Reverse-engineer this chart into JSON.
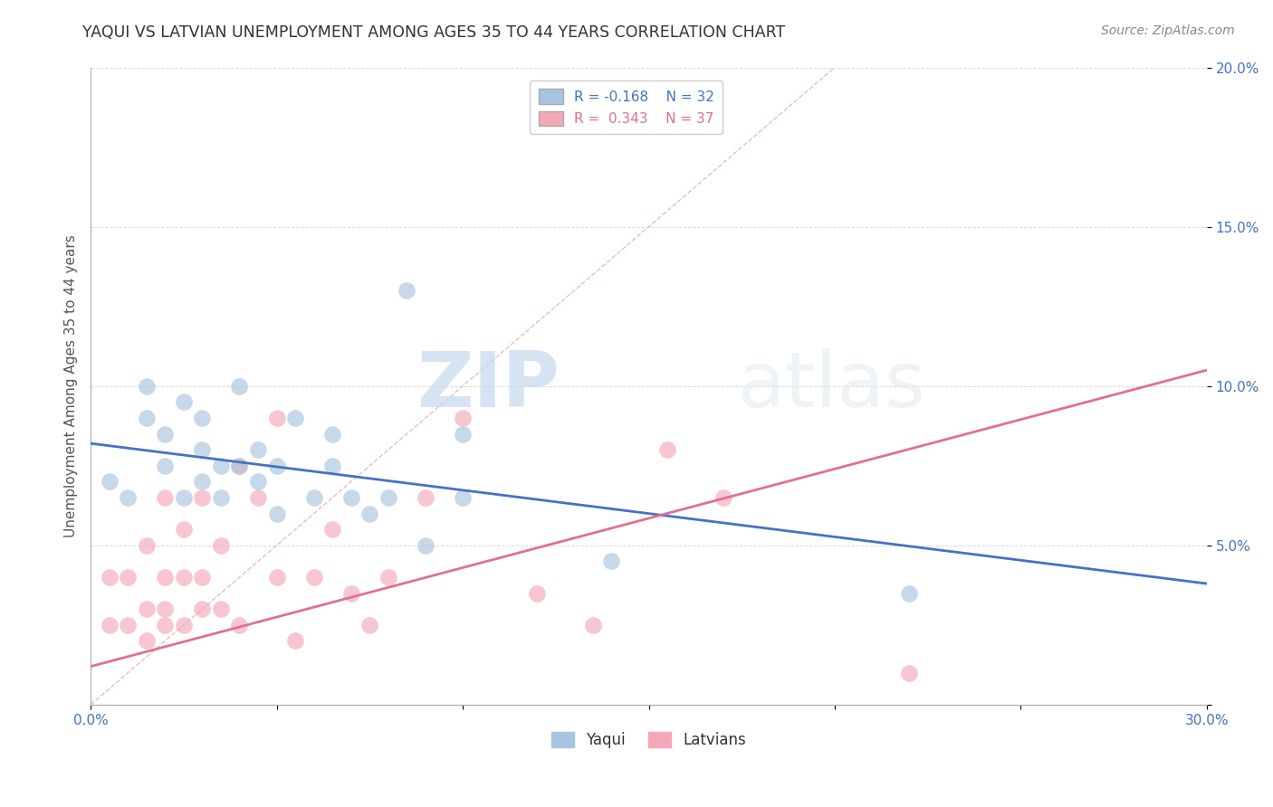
{
  "title": "YAQUI VS LATVIAN UNEMPLOYMENT AMONG AGES 35 TO 44 YEARS CORRELATION CHART",
  "source": "Source: ZipAtlas.com",
  "ylabel": "Unemployment Among Ages 35 to 44 years",
  "xlim": [
    0.0,
    0.3
  ],
  "ylim": [
    0.0,
    0.2
  ],
  "xticks": [
    0.0,
    0.05,
    0.1,
    0.15,
    0.2,
    0.25,
    0.3
  ],
  "yticks": [
    0.0,
    0.05,
    0.1,
    0.15,
    0.2
  ],
  "legend_r_yaqui": "-0.168",
  "legend_n_yaqui": "32",
  "legend_r_latvian": "0.343",
  "legend_n_latvian": "37",
  "yaqui_color": "#a8c4e0",
  "latvian_color": "#f4a8b8",
  "yaqui_line_color": "#4472c4",
  "latvian_line_color": "#e07090",
  "diagonal_color": "#d8b0b8",
  "watermark_zip": "ZIP",
  "watermark_atlas": "atlas",
  "yaqui_x": [
    0.005,
    0.01,
    0.015,
    0.015,
    0.02,
    0.02,
    0.025,
    0.025,
    0.03,
    0.03,
    0.03,
    0.035,
    0.035,
    0.04,
    0.04,
    0.045,
    0.045,
    0.05,
    0.05,
    0.055,
    0.06,
    0.065,
    0.065,
    0.07,
    0.075,
    0.08,
    0.085,
    0.09,
    0.1,
    0.1,
    0.14,
    0.22
  ],
  "yaqui_y": [
    0.07,
    0.065,
    0.09,
    0.1,
    0.075,
    0.085,
    0.065,
    0.095,
    0.07,
    0.08,
    0.09,
    0.065,
    0.075,
    0.075,
    0.1,
    0.07,
    0.08,
    0.06,
    0.075,
    0.09,
    0.065,
    0.075,
    0.085,
    0.065,
    0.06,
    0.065,
    0.13,
    0.05,
    0.065,
    0.085,
    0.045,
    0.035
  ],
  "latvian_x": [
    0.005,
    0.005,
    0.01,
    0.01,
    0.015,
    0.015,
    0.015,
    0.02,
    0.02,
    0.02,
    0.02,
    0.025,
    0.025,
    0.025,
    0.03,
    0.03,
    0.03,
    0.035,
    0.035,
    0.04,
    0.04,
    0.045,
    0.05,
    0.05,
    0.055,
    0.06,
    0.065,
    0.07,
    0.075,
    0.08,
    0.09,
    0.1,
    0.12,
    0.135,
    0.155,
    0.17,
    0.22
  ],
  "latvian_y": [
    0.025,
    0.04,
    0.025,
    0.04,
    0.02,
    0.03,
    0.05,
    0.025,
    0.03,
    0.04,
    0.065,
    0.025,
    0.04,
    0.055,
    0.03,
    0.04,
    0.065,
    0.03,
    0.05,
    0.025,
    0.075,
    0.065,
    0.04,
    0.09,
    0.02,
    0.04,
    0.055,
    0.035,
    0.025,
    0.04,
    0.065,
    0.09,
    0.035,
    0.025,
    0.08,
    0.065,
    0.01
  ],
  "yaqui_line_x0": 0.0,
  "yaqui_line_y0": 0.082,
  "yaqui_line_x1": 0.3,
  "yaqui_line_y1": 0.038,
  "latvian_line_x0": 0.0,
  "latvian_line_y0": 0.012,
  "latvian_line_x1": 0.3,
  "latvian_line_y1": 0.105
}
